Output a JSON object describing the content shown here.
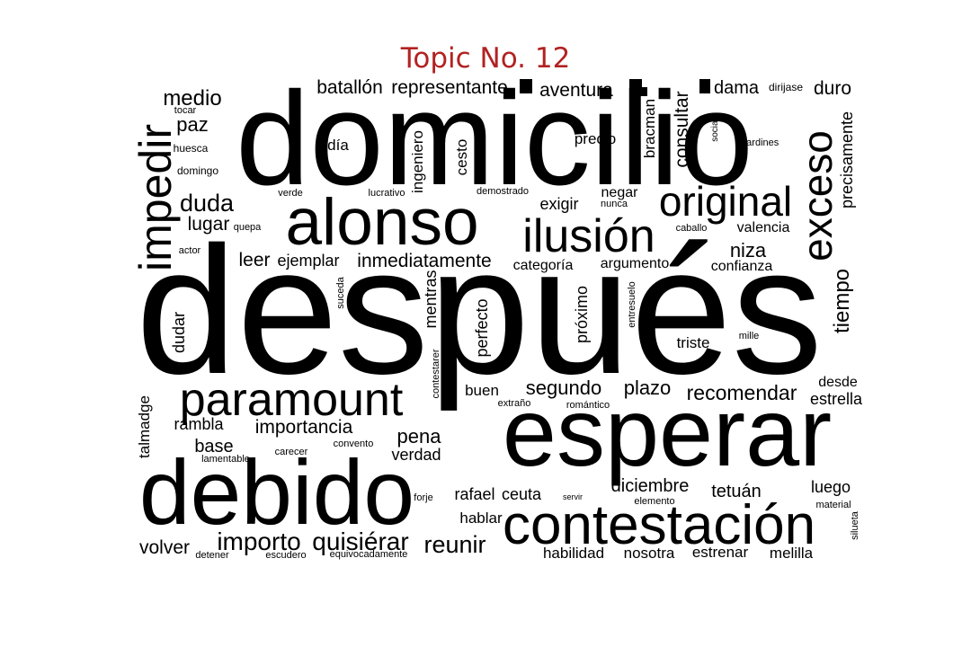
{
  "title": "Topic No. 12",
  "text_color": "#000000",
  "title_color": "#b22222",
  "words": [
    "después",
    "domicilio",
    "esperar",
    "debido",
    "alonso",
    "contestación",
    "paramount",
    "ilusión",
    "impedir",
    "original",
    "exceso",
    "tiempo",
    "importo",
    "quisiérar",
    "reunir",
    "medio",
    "paz",
    "duda",
    "lugar",
    "leer",
    "ejemplar",
    "inmediatamente",
    "batallón",
    "representante",
    "aventura",
    "dama",
    "dirijase",
    "duro",
    "precisamente",
    "consultar",
    "social",
    "jardines",
    "bracman",
    "precio",
    "detallado",
    "cesto",
    "ingeniero",
    "día",
    "tocar",
    "huesca",
    "domingo",
    "verde",
    "lucrativo",
    "demostrado",
    "exigir",
    "negar",
    "nunca",
    "caballo",
    "valencia",
    "niza",
    "confianza",
    "categoría",
    "argumento",
    "quepa",
    "actor",
    "mentras",
    "perfecto",
    "próximo",
    "entresuelo",
    "suceda",
    "dudar",
    "contestarer",
    "mille",
    "triste",
    "desde",
    "estrella",
    "recomendar",
    "plazo",
    "segundo",
    "buen",
    "extraño",
    "romántico",
    "talmadge",
    "rambla",
    "importancia",
    "pena",
    "verdad",
    "convento",
    "base",
    "carecer",
    "lamentable",
    "forje",
    "rafael",
    "ceuta",
    "servir",
    "diciembre",
    "elemento",
    "tetuán",
    "luego",
    "material",
    "silueta",
    "hablar",
    "volver",
    "detener",
    "escudero",
    "equivocadamente",
    "habilidad",
    "nosotra",
    "estrenar",
    "melilla"
  ]
}
